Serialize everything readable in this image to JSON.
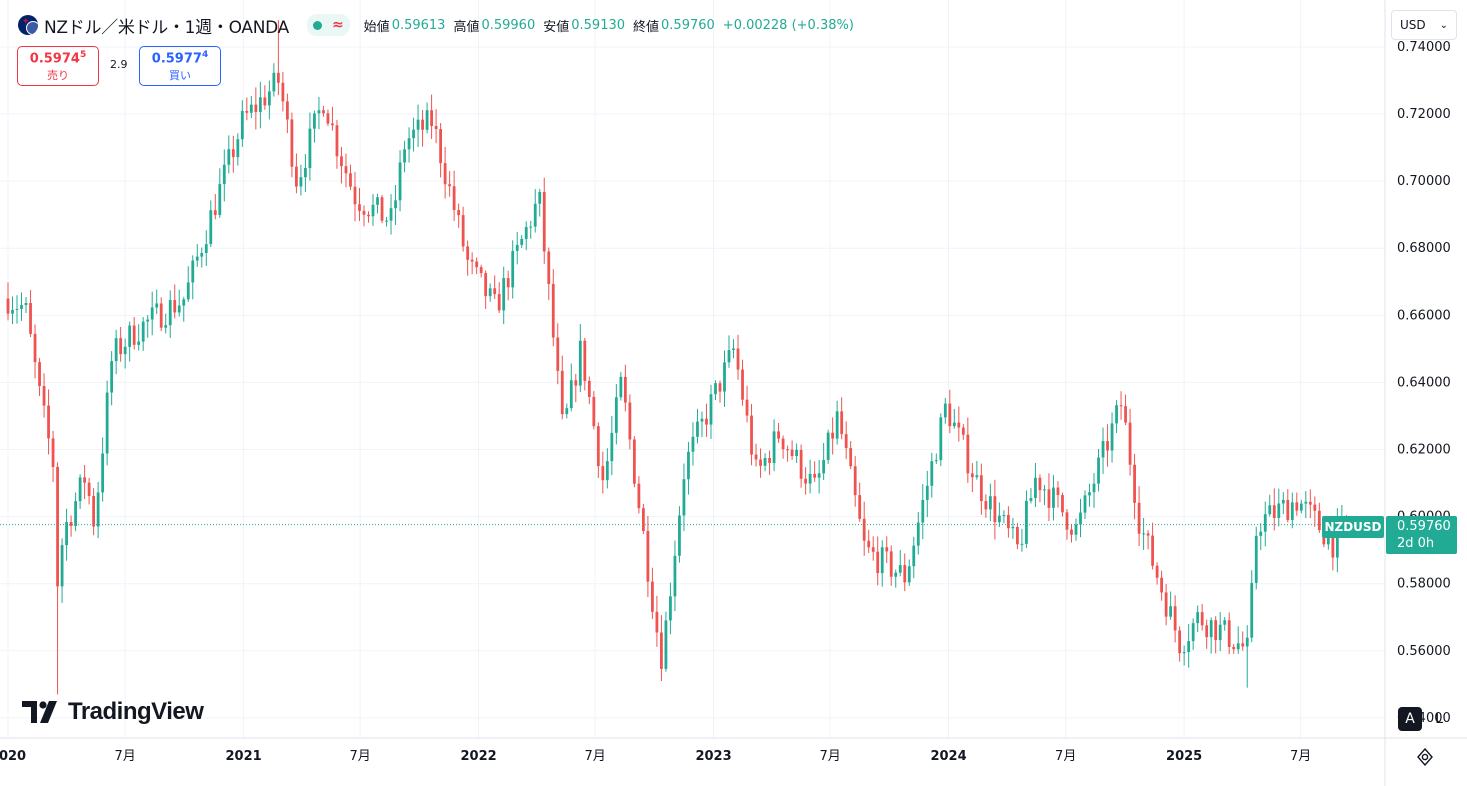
{
  "header": {
    "symbol_title": "NZドル／米ドル・1週・OANDA",
    "approx_icon": "≈",
    "open_label": "始値",
    "open_value": "0.59613",
    "high_label": "高値",
    "high_value": "0.59960",
    "low_label": "安値",
    "low_value": "0.59130",
    "close_label": "終値",
    "close_value": "0.59760",
    "change": "+0.00228 (+0.38%)"
  },
  "trade": {
    "sell_price_main": "0.5974",
    "sell_price_sup": "5",
    "sell_label": "売り",
    "spread": "2.9",
    "buy_price_main": "0.5977",
    "buy_price_sup": "4",
    "buy_label": "買い"
  },
  "currency_select": {
    "value": "USD",
    "icon": "chevron-down-icon"
  },
  "branding": {
    "logo_text": "TradingView"
  },
  "scale_buttons": {
    "auto": "A",
    "log": "L"
  },
  "last_price": {
    "symbol": "NZDUSD",
    "value": "0.59760",
    "countdown": "2d 0h"
  },
  "colors": {
    "up": "#22ab94",
    "down": "#ef5350",
    "grid": "#f0f3fa",
    "axis_text": "#131722"
  },
  "chart_data": {
    "type": "candlestick",
    "timeframe": "1週",
    "y_axis": {
      "range": [
        0.534,
        0.754
      ],
      "ticks": [
        "0.54000",
        "0.56000",
        "0.58000",
        "0.60000",
        "0.62000",
        "0.64000",
        "0.66000",
        "0.68000",
        "0.70000",
        "0.72000",
        "0.74000"
      ]
    },
    "x_axis": {
      "range": [
        "2020-01-01",
        "2025-11-09"
      ],
      "ticks": [
        {
          "date": "2020-01-01",
          "label": "2020",
          "bold": true
        },
        {
          "date": "2020-07-01",
          "label": "7月",
          "bold": false
        },
        {
          "date": "2021-01-01",
          "label": "2021",
          "bold": true
        },
        {
          "date": "2021-07-01",
          "label": "7月",
          "bold": false
        },
        {
          "date": "2022-01-01",
          "label": "2022",
          "bold": true
        },
        {
          "date": "2022-07-01",
          "label": "7月",
          "bold": false
        },
        {
          "date": "2023-01-01",
          "label": "2023",
          "bold": true
        },
        {
          "date": "2023-07-01",
          "label": "7月",
          "bold": false
        },
        {
          "date": "2024-01-01",
          "label": "2024",
          "bold": true
        },
        {
          "date": "2024-07-01",
          "label": "7月",
          "bold": false
        },
        {
          "date": "2025-01-01",
          "label": "2025",
          "bold": true
        },
        {
          "date": "2025-07-01",
          "label": "7月",
          "bold": false
        }
      ]
    },
    "last_close": 0.5976,
    "close_path": [
      [
        "2020-01-01",
        0.665
      ],
      [
        "2020-01-28",
        0.662
      ],
      [
        "2020-02-20",
        0.635
      ],
      [
        "2020-03-12",
        0.615
      ],
      [
        "2020-03-19",
        0.575
      ],
      [
        "2020-03-26",
        0.595
      ],
      [
        "2020-04-16",
        0.605
      ],
      [
        "2020-04-30",
        0.612
      ],
      [
        "2020-05-14",
        0.598
      ],
      [
        "2020-06-11",
        0.648
      ],
      [
        "2020-07-15",
        0.655
      ],
      [
        "2020-08-20",
        0.66
      ],
      [
        "2020-10-01",
        0.665
      ],
      [
        "2020-11-12",
        0.69
      ],
      [
        "2020-12-31",
        0.718
      ],
      [
        "2021-02-25",
        0.73
      ],
      [
        "2021-03-25",
        0.7
      ],
      [
        "2021-05-06",
        0.725
      ],
      [
        "2021-05-27",
        0.71
      ],
      [
        "2021-06-24",
        0.695
      ],
      [
        "2021-08-19",
        0.688
      ],
      [
        "2021-09-09",
        0.712
      ],
      [
        "2021-10-21",
        0.718
      ],
      [
        "2021-12-16",
        0.675
      ],
      [
        "2022-01-27",
        0.662
      ],
      [
        "2022-04-05",
        0.695
      ],
      [
        "2022-05-12",
        0.625
      ],
      [
        "2022-06-09",
        0.65
      ],
      [
        "2022-07-14",
        0.61
      ],
      [
        "2022-08-11",
        0.64
      ],
      [
        "2022-10-06",
        0.565
      ],
      [
        "2022-10-13",
        0.558
      ],
      [
        "2022-11-17",
        0.615
      ],
      [
        "2023-02-02",
        0.65
      ],
      [
        "2023-03-09",
        0.612
      ],
      [
        "2023-04-13",
        0.625
      ],
      [
        "2023-06-08",
        0.608
      ],
      [
        "2023-07-13",
        0.63
      ],
      [
        "2023-08-24",
        0.59
      ],
      [
        "2023-10-26",
        0.582
      ],
      [
        "2023-12-28",
        0.633
      ],
      [
        "2024-02-15",
        0.61
      ],
      [
        "2024-04-18",
        0.59
      ],
      [
        "2024-05-16",
        0.612
      ],
      [
        "2024-07-18",
        0.596
      ],
      [
        "2024-09-26",
        0.634
      ],
      [
        "2024-10-24",
        0.598
      ],
      [
        "2024-12-26",
        0.562
      ],
      [
        "2025-01-23",
        0.57
      ],
      [
        "2025-02-27",
        0.566
      ],
      [
        "2025-04-10",
        0.56
      ],
      [
        "2025-04-24",
        0.598
      ],
      [
        "2025-06-26",
        0.605
      ],
      [
        "2025-08-21",
        0.592
      ],
      [
        "2025-09-11",
        0.5976
      ]
    ],
    "wick_extremes": [
      {
        "date": "2020-03-19",
        "low": 0.547
      },
      {
        "date": "2021-02-25",
        "high": 0.748
      },
      {
        "date": "2022-10-13",
        "low": 0.551
      },
      {
        "date": "2025-04-10",
        "low": 0.549
      }
    ]
  }
}
